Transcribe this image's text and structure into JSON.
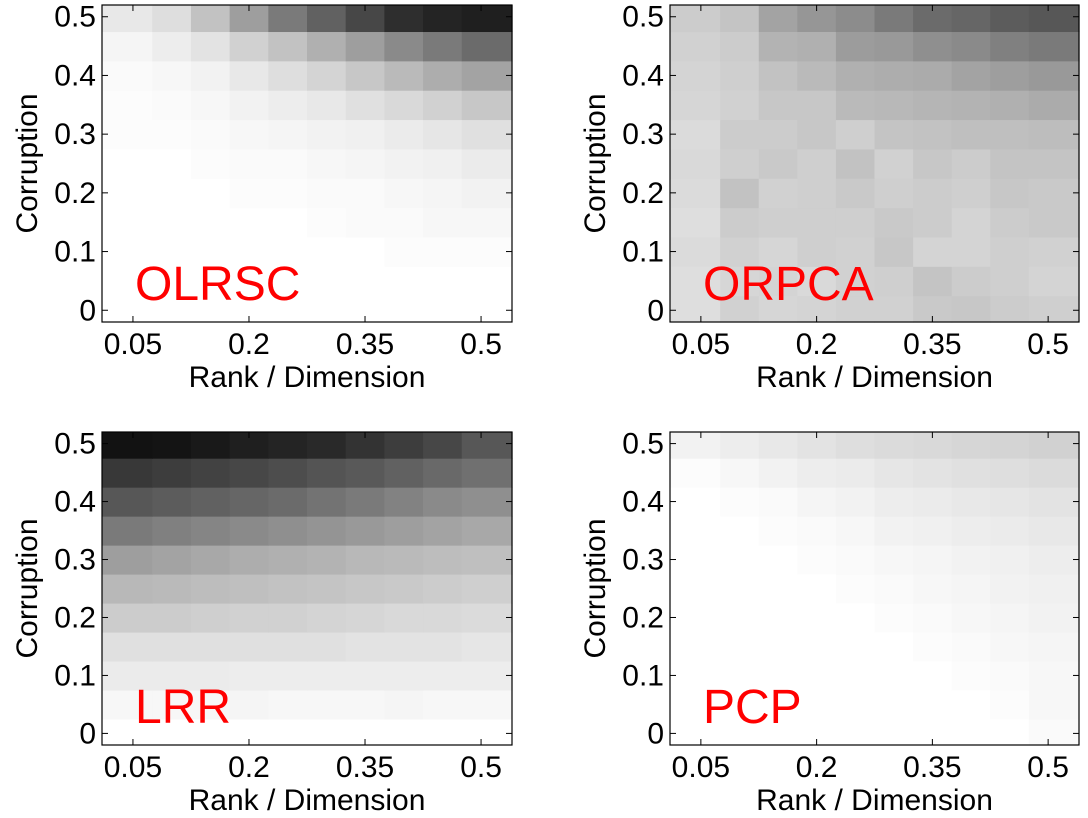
{
  "colors": {
    "method_label": "#ff0000",
    "axis": "#000000",
    "background": "#ffffff"
  },
  "chart_data": [
    {
      "type": "heatmap",
      "title": "OLRSC",
      "xlabel": "Rank / Dimension",
      "ylabel": "Corruption",
      "xticks": [
        "0.05",
        "0.2",
        "0.35",
        "0.5"
      ],
      "yticks": [
        "0",
        "0.1",
        "0.2",
        "0.3",
        "0.4",
        "0.5"
      ],
      "x": [
        0.05,
        0.1,
        0.15,
        0.2,
        0.25,
        0.3,
        0.35,
        0.4,
        0.45,
        0.5
      ],
      "y": [
        0.0,
        0.05,
        0.1,
        0.15,
        0.2,
        0.25,
        0.3,
        0.35,
        0.4,
        0.45,
        0.5
      ],
      "xlim": [
        0.01,
        0.54
      ],
      "ylim": [
        -0.02,
        0.52
      ],
      "colormap": "gray (dark = high value)",
      "values": [
        [
          0.0,
          0.0,
          0.0,
          0.0,
          0.0,
          0.0,
          0.0,
          0.0,
          0.0,
          0.0
        ],
        [
          0.0,
          0.0,
          0.0,
          0.0,
          0.0,
          0.0,
          0.0,
          0.0,
          0.0,
          0.0
        ],
        [
          0.0,
          0.0,
          0.0,
          0.0,
          0.0,
          0.0,
          0.0,
          0.01,
          0.01,
          0.01
        ],
        [
          0.0,
          0.0,
          0.0,
          0.0,
          0.0,
          0.01,
          0.02,
          0.02,
          0.03,
          0.03
        ],
        [
          0.0,
          0.0,
          0.0,
          0.01,
          0.01,
          0.02,
          0.02,
          0.03,
          0.04,
          0.05
        ],
        [
          0.0,
          0.0,
          0.01,
          0.02,
          0.02,
          0.03,
          0.04,
          0.05,
          0.06,
          0.08
        ],
        [
          0.01,
          0.01,
          0.02,
          0.03,
          0.04,
          0.05,
          0.06,
          0.08,
          0.1,
          0.12
        ],
        [
          0.01,
          0.02,
          0.03,
          0.05,
          0.07,
          0.09,
          0.12,
          0.15,
          0.18,
          0.22
        ],
        [
          0.02,
          0.03,
          0.05,
          0.09,
          0.13,
          0.17,
          0.22,
          0.27,
          0.32,
          0.36
        ],
        [
          0.04,
          0.07,
          0.11,
          0.18,
          0.24,
          0.31,
          0.38,
          0.46,
          0.52,
          0.58
        ],
        [
          0.09,
          0.13,
          0.24,
          0.38,
          0.52,
          0.62,
          0.72,
          0.82,
          0.86,
          0.88
        ]
      ]
    },
    {
      "type": "heatmap",
      "title": "ORPCA",
      "xlabel": "Rank / Dimension",
      "ylabel": "Corruption",
      "xticks": [
        "0.05",
        "0.2",
        "0.35",
        "0.5"
      ],
      "yticks": [
        "0",
        "0.1",
        "0.2",
        "0.3",
        "0.4",
        "0.5"
      ],
      "x": [
        0.05,
        0.1,
        0.15,
        0.2,
        0.25,
        0.3,
        0.35,
        0.4,
        0.45,
        0.5
      ],
      "y": [
        0.0,
        0.05,
        0.1,
        0.15,
        0.2,
        0.25,
        0.3,
        0.35,
        0.4,
        0.45,
        0.5
      ],
      "xlim": [
        0.01,
        0.54
      ],
      "ylim": [
        -0.02,
        0.52
      ],
      "colormap": "gray (dark = high value)",
      "values": [
        [
          0.13,
          0.18,
          0.16,
          0.17,
          0.18,
          0.18,
          0.21,
          0.22,
          0.2,
          0.19
        ],
        [
          0.13,
          0.16,
          0.17,
          0.15,
          0.18,
          0.19,
          0.23,
          0.2,
          0.19,
          0.17
        ],
        [
          0.14,
          0.18,
          0.16,
          0.19,
          0.18,
          0.22,
          0.17,
          0.17,
          0.19,
          0.18
        ],
        [
          0.13,
          0.2,
          0.19,
          0.19,
          0.19,
          0.21,
          0.2,
          0.17,
          0.2,
          0.21
        ],
        [
          0.14,
          0.24,
          0.18,
          0.19,
          0.21,
          0.19,
          0.2,
          0.19,
          0.22,
          0.21
        ],
        [
          0.15,
          0.19,
          0.21,
          0.19,
          0.24,
          0.18,
          0.22,
          0.2,
          0.23,
          0.23
        ],
        [
          0.14,
          0.2,
          0.2,
          0.22,
          0.19,
          0.23,
          0.24,
          0.25,
          0.25,
          0.26
        ],
        [
          0.16,
          0.18,
          0.22,
          0.22,
          0.27,
          0.28,
          0.29,
          0.3,
          0.31,
          0.33
        ],
        [
          0.17,
          0.19,
          0.24,
          0.27,
          0.31,
          0.32,
          0.33,
          0.36,
          0.38,
          0.4
        ],
        [
          0.18,
          0.2,
          0.3,
          0.31,
          0.39,
          0.4,
          0.44,
          0.46,
          0.5,
          0.52
        ],
        [
          0.2,
          0.23,
          0.36,
          0.41,
          0.45,
          0.52,
          0.58,
          0.6,
          0.64,
          0.66
        ]
      ]
    },
    {
      "type": "heatmap",
      "title": "LRR",
      "xlabel": "Rank / Dimension",
      "ylabel": "Corruption",
      "xticks": [
        "0.05",
        "0.2",
        "0.35",
        "0.5"
      ],
      "yticks": [
        "0",
        "0.1",
        "0.2",
        "0.3",
        "0.4",
        "0.5"
      ],
      "x": [
        0.05,
        0.1,
        0.15,
        0.2,
        0.25,
        0.3,
        0.35,
        0.4,
        0.45,
        0.5
      ],
      "y": [
        0.0,
        0.05,
        0.1,
        0.15,
        0.2,
        0.25,
        0.3,
        0.35,
        0.4,
        0.45,
        0.5
      ],
      "xlim": [
        0.01,
        0.54
      ],
      "ylim": [
        -0.02,
        0.52
      ],
      "colormap": "gray (dark = high value)",
      "values": [
        [
          0.0,
          0.0,
          0.0,
          0.0,
          0.0,
          0.0,
          0.0,
          0.0,
          0.0,
          0.0
        ],
        [
          0.03,
          0.03,
          0.03,
          0.04,
          0.03,
          0.03,
          0.03,
          0.04,
          0.03,
          0.03
        ],
        [
          0.08,
          0.08,
          0.08,
          0.07,
          0.07,
          0.07,
          0.07,
          0.07,
          0.07,
          0.07
        ],
        [
          0.12,
          0.12,
          0.12,
          0.12,
          0.12,
          0.12,
          0.11,
          0.11,
          0.11,
          0.1
        ],
        [
          0.2,
          0.2,
          0.19,
          0.18,
          0.18,
          0.17,
          0.16,
          0.15,
          0.15,
          0.14
        ],
        [
          0.28,
          0.27,
          0.26,
          0.25,
          0.24,
          0.23,
          0.22,
          0.21,
          0.2,
          0.19
        ],
        [
          0.38,
          0.36,
          0.34,
          0.32,
          0.31,
          0.3,
          0.28,
          0.27,
          0.26,
          0.25
        ],
        [
          0.52,
          0.5,
          0.48,
          0.46,
          0.44,
          0.42,
          0.4,
          0.38,
          0.36,
          0.34
        ],
        [
          0.66,
          0.64,
          0.62,
          0.6,
          0.58,
          0.55,
          0.52,
          0.49,
          0.46,
          0.44
        ],
        [
          0.78,
          0.76,
          0.74,
          0.72,
          0.7,
          0.67,
          0.65,
          0.62,
          0.59,
          0.56
        ],
        [
          0.93,
          0.92,
          0.9,
          0.88,
          0.86,
          0.84,
          0.8,
          0.76,
          0.72,
          0.66
        ]
      ]
    },
    {
      "type": "heatmap",
      "title": "PCP",
      "xlabel": "Rank / Dimension",
      "ylabel": "Corruption",
      "xticks": [
        "0.05",
        "0.2",
        "0.35",
        "0.5"
      ],
      "yticks": [
        "0",
        "0.1",
        "0.2",
        "0.3",
        "0.4",
        "0.5"
      ],
      "x": [
        0.05,
        0.1,
        0.15,
        0.2,
        0.25,
        0.3,
        0.35,
        0.4,
        0.45,
        0.5
      ],
      "y": [
        0.0,
        0.05,
        0.1,
        0.15,
        0.2,
        0.25,
        0.3,
        0.35,
        0.4,
        0.45,
        0.5
      ],
      "xlim": [
        0.01,
        0.54
      ],
      "ylim": [
        -0.02,
        0.52
      ],
      "colormap": "gray (dark = high value)",
      "values": [
        [
          0.0,
          0.0,
          0.0,
          0.0,
          0.0,
          0.0,
          0.0,
          0.0,
          0.0,
          0.02
        ],
        [
          0.0,
          0.0,
          0.0,
          0.0,
          0.0,
          0.0,
          0.0,
          0.0,
          0.01,
          0.03
        ],
        [
          0.0,
          0.0,
          0.0,
          0.0,
          0.0,
          0.0,
          0.0,
          0.01,
          0.02,
          0.03
        ],
        [
          0.0,
          0.0,
          0.0,
          0.0,
          0.0,
          0.0,
          0.01,
          0.02,
          0.03,
          0.04
        ],
        [
          0.0,
          0.0,
          0.0,
          0.0,
          0.0,
          0.01,
          0.02,
          0.03,
          0.04,
          0.05
        ],
        [
          0.0,
          0.0,
          0.0,
          0.0,
          0.01,
          0.02,
          0.03,
          0.04,
          0.05,
          0.06
        ],
        [
          0.0,
          0.0,
          0.0,
          0.01,
          0.02,
          0.03,
          0.04,
          0.05,
          0.06,
          0.07
        ],
        [
          0.0,
          0.0,
          0.01,
          0.02,
          0.03,
          0.05,
          0.06,
          0.07,
          0.08,
          0.09
        ],
        [
          0.0,
          0.01,
          0.02,
          0.04,
          0.05,
          0.07,
          0.08,
          0.09,
          0.1,
          0.11
        ],
        [
          0.01,
          0.03,
          0.05,
          0.07,
          0.08,
          0.1,
          0.11,
          0.12,
          0.13,
          0.14
        ],
        [
          0.05,
          0.07,
          0.09,
          0.11,
          0.13,
          0.14,
          0.15,
          0.16,
          0.17,
          0.18
        ]
      ]
    }
  ]
}
